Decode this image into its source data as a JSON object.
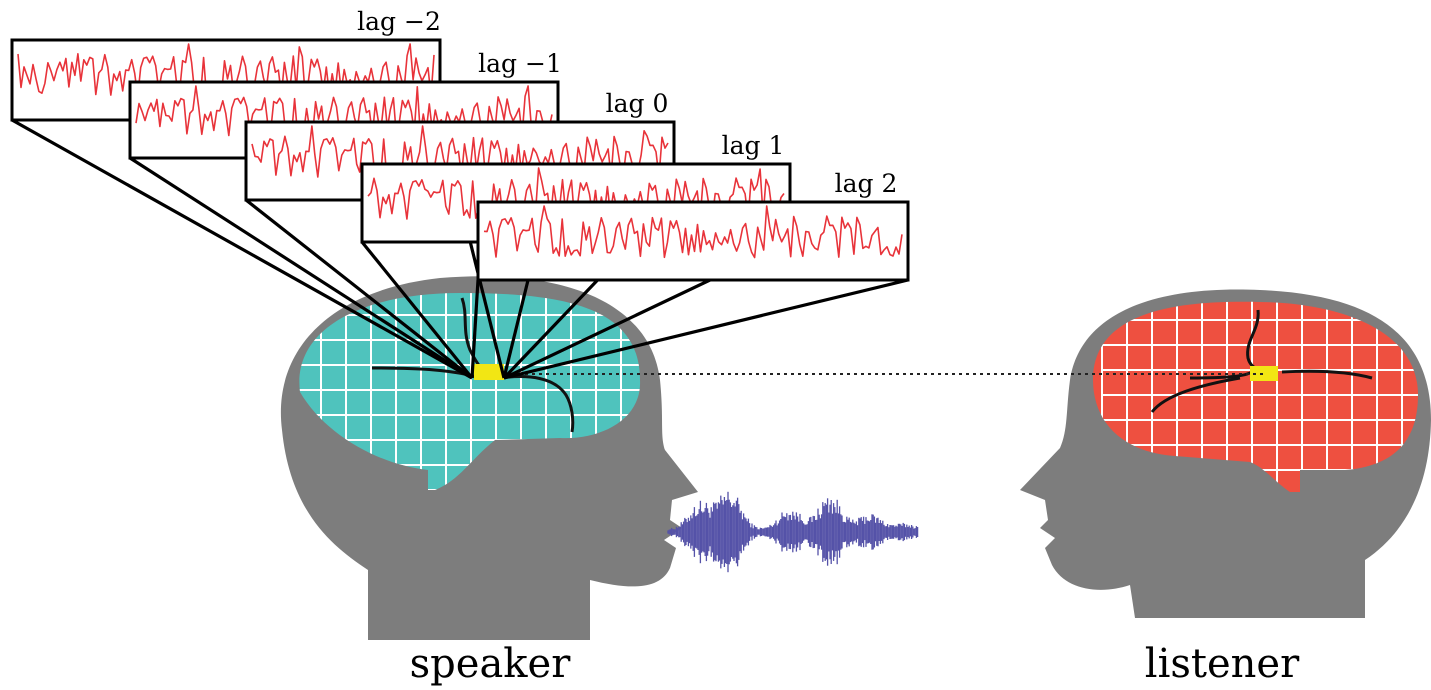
{
  "panels": [
    {
      "label": "lag −2"
    },
    {
      "label": "lag −1"
    },
    {
      "label": "lag 0"
    },
    {
      "label": "lag 1"
    },
    {
      "label": "lag 2"
    }
  ],
  "speaker": {
    "label": "speaker"
  },
  "listener": {
    "label": "listener"
  },
  "colors": {
    "trace": "#e8333a",
    "speaker_brain": "#4fc3bd",
    "listener_brain": "#ee5040",
    "head": "#7d7d7d",
    "highlight": "#f2e614",
    "waveform": "#5552a8"
  }
}
